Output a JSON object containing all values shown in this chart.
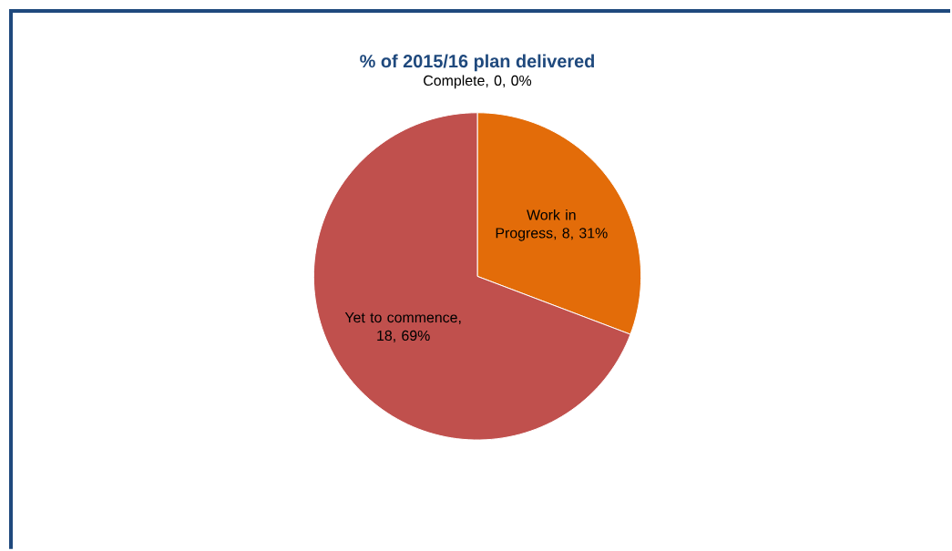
{
  "chart_data": {
    "type": "pie",
    "title": "% of 2015/16 plan delivered",
    "categories": [
      "Complete",
      "Work in Progress",
      "Yet to commence"
    ],
    "values": [
      0,
      8,
      18
    ],
    "colors": [
      "#92d0a8",
      "#e36c09",
      "#c0504d"
    ],
    "value_labels": [
      ", 0, 0%",
      ", 8, 31%",
      ", 18, 69%"
    ]
  }
}
